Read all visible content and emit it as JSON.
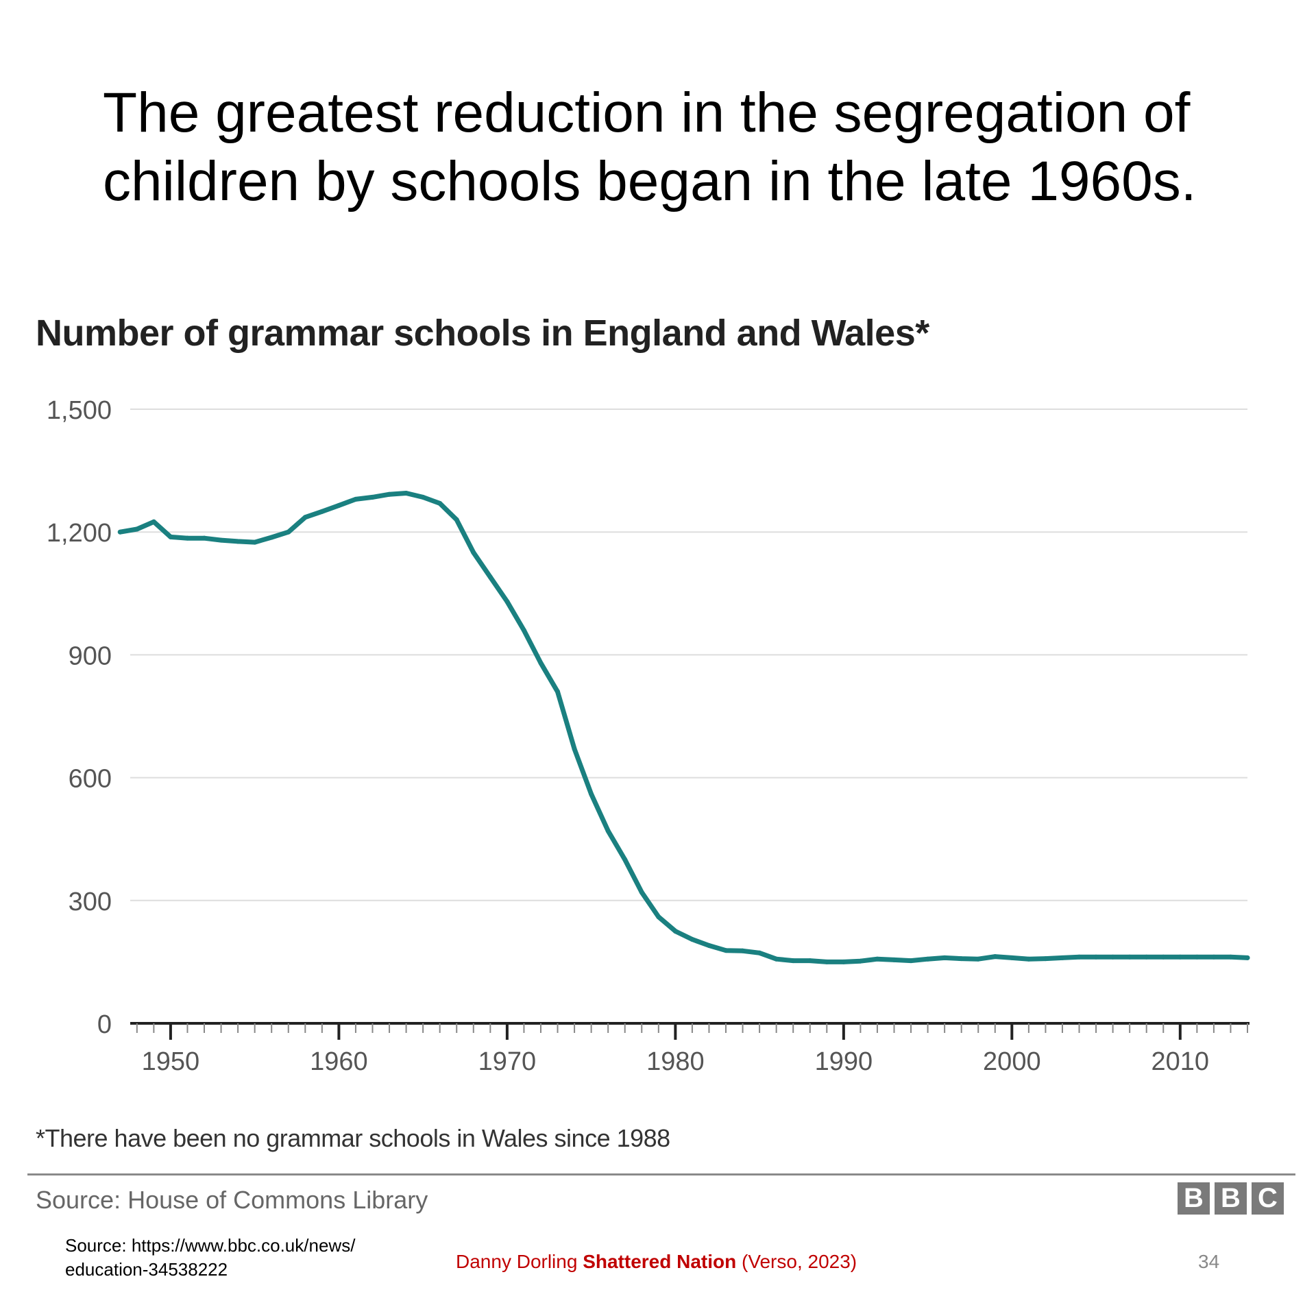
{
  "slide": {
    "title_line1": "The greatest reduction in the segregation of",
    "title_line2": "children by schools began in the late 1960s.",
    "source_line1": "Source: https://www.bbc.co.uk/news/",
    "source_line2": "education-34538222",
    "citation_author": "Danny Dorling ",
    "citation_book": "Shattered Nation",
    "citation_publisher": " (Verso, 2023)",
    "page_number": "34"
  },
  "chart": {
    "footnote": "*There have been no grammar schools in Wales since 1988",
    "source": "Source: House of Commons Library",
    "logo_letters": [
      "B",
      "B",
      "C"
    ]
  },
  "colors": {
    "line": "#1a8080",
    "grid": "#dddddd",
    "axis": "#222222",
    "citation": "#c00000"
  },
  "chart_data": {
    "type": "line",
    "title": "Number of grammar schools in England and Wales*",
    "xlabel": "",
    "ylabel": "",
    "xlim": [
      1947,
      2014
    ],
    "ylim": [
      0,
      1500
    ],
    "yticks": [
      0,
      300,
      600,
      900,
      1200,
      1500
    ],
    "ytick_labels": [
      "0",
      "300",
      "600",
      "900",
      "1,200",
      "1,500"
    ],
    "xticks": [
      1950,
      1960,
      1970,
      1980,
      1990,
      2000,
      2010
    ],
    "xtick_labels": [
      "1950",
      "1960",
      "1970",
      "1980",
      "1990",
      "2000",
      "2010"
    ],
    "grid": true,
    "series": [
      {
        "name": "Grammar schools",
        "x": [
          1947,
          1948,
          1949,
          1950,
          1951,
          1952,
          1953,
          1954,
          1955,
          1956,
          1957,
          1958,
          1959,
          1960,
          1961,
          1962,
          1963,
          1964,
          1965,
          1966,
          1967,
          1968,
          1969,
          1970,
          1971,
          1972,
          1973,
          1974,
          1975,
          1976,
          1977,
          1978,
          1979,
          1980,
          1981,
          1982,
          1983,
          1984,
          1985,
          1986,
          1987,
          1988,
          1989,
          1990,
          1991,
          1992,
          1993,
          1994,
          1995,
          1996,
          1997,
          1998,
          1999,
          2000,
          2001,
          2002,
          2003,
          2004,
          2005,
          2006,
          2007,
          2008,
          2009,
          2010,
          2011,
          2012,
          2013,
          2014
        ],
        "values": [
          1200,
          1207,
          1225,
          1188,
          1185,
          1185,
          1180,
          1177,
          1175,
          1187,
          1200,
          1236,
          1250,
          1265,
          1280,
          1285,
          1292,
          1295,
          1285,
          1270,
          1230,
          1150,
          1090,
          1030,
          960,
          880,
          810,
          670,
          560,
          470,
          400,
          320,
          260,
          225,
          205,
          190,
          178,
          177,
          172,
          157,
          153,
          153,
          150,
          150,
          152,
          157,
          155,
          153,
          157,
          160,
          158,
          157,
          163,
          160,
          157,
          158,
          160,
          162,
          162,
          162,
          162,
          162,
          162,
          162,
          162,
          162,
          162,
          160
        ]
      }
    ]
  }
}
